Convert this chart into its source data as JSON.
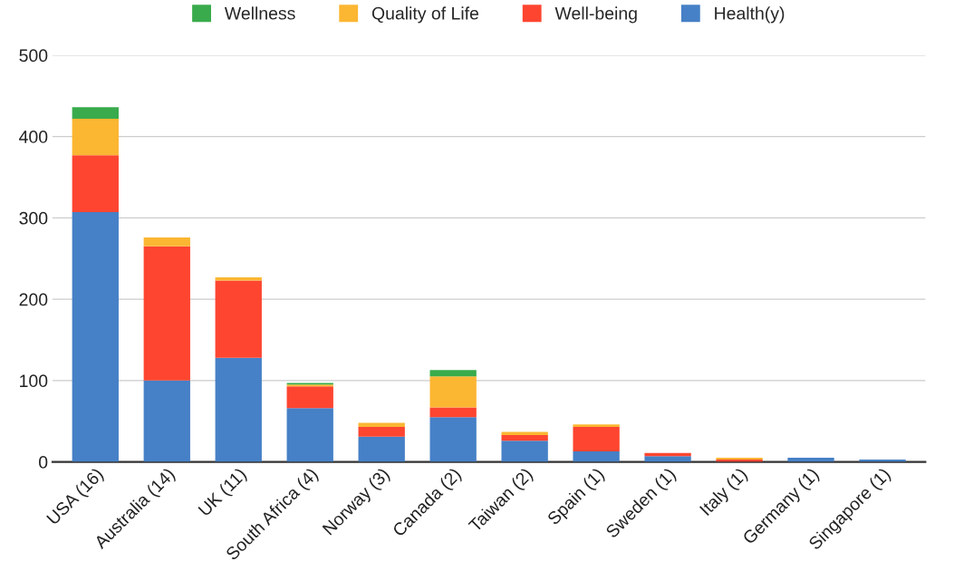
{
  "chart_data": {
    "type": "bar",
    "stacked": true,
    "categories": [
      "USA (16)",
      "Australia (14)",
      "UK (11)",
      "South Africa (4)",
      "Norway (3)",
      "Canada (2)",
      "Taiwan (2)",
      "Spain (1)",
      "Sweden (1)",
      "Italy (1)",
      "Germany (1)",
      "Singapore (1)"
    ],
    "series": [
      {
        "name": "Health(y)",
        "color": "#4680c6",
        "values": [
          307,
          100,
          128,
          66,
          31,
          55,
          26,
          13,
          7,
          null,
          5,
          3
        ]
      },
      {
        "name": "Well-being",
        "color": "#fd4530",
        "values": [
          70,
          165,
          95,
          27,
          12,
          12,
          7,
          30,
          4,
          3,
          null,
          null
        ]
      },
      {
        "name": "Quality of Life",
        "color": "#fbb632",
        "values": [
          45,
          11,
          4,
          2,
          5,
          38,
          4,
          3,
          null,
          2,
          null,
          null
        ]
      },
      {
        "name": "Wellness",
        "color": "#39ab4c",
        "values": [
          14,
          null,
          null,
          2,
          null,
          8,
          null,
          null,
          null,
          null,
          null,
          null
        ]
      }
    ],
    "ylim": [
      0,
      500
    ],
    "yticks": [
      0,
      100,
      200,
      300,
      400,
      500
    ],
    "grid": "y",
    "legend": "top"
  }
}
